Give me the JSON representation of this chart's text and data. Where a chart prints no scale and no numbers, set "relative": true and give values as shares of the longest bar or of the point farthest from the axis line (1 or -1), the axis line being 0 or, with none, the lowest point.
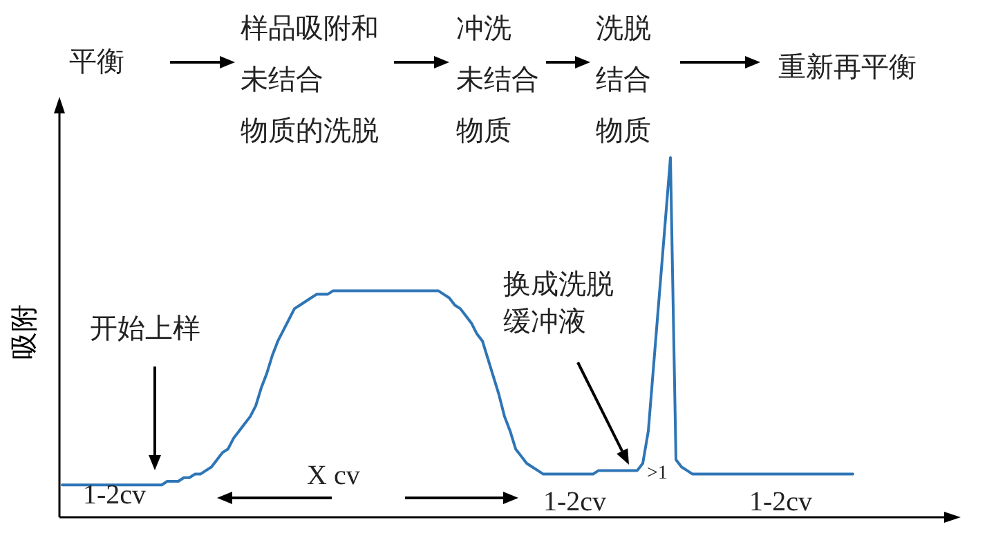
{
  "chart_data": {
    "type": "line",
    "relative": true,
    "ylabel": "吸附",
    "color": "#2e75b6",
    "categories": [
      null,
      null,
      null,
      null,
      null,
      null,
      null,
      null,
      null,
      null,
      null,
      null,
      null,
      null,
      null,
      null,
      null,
      null,
      null,
      null,
      null,
      null,
      null,
      null,
      null,
      null,
      null,
      null,
      null,
      null,
      null,
      null,
      null,
      null,
      null,
      null,
      null,
      null,
      null,
      null,
      null,
      null,
      null,
      null,
      null,
      null,
      null,
      null,
      null,
      null,
      null,
      null,
      null,
      null,
      null,
      null,
      null,
      null,
      null,
      null,
      null,
      null,
      null,
      null,
      null,
      null,
      null,
      null,
      null,
      null,
      null,
      null,
      null,
      null,
      null,
      null,
      null,
      null,
      null,
      null,
      null,
      null,
      null,
      null,
      null,
      null,
      null,
      null,
      null,
      null,
      null,
      null,
      null,
      null,
      null,
      null,
      null,
      null,
      null,
      null,
      null,
      null,
      null,
      null,
      null,
      null,
      null,
      null,
      null,
      null,
      null,
      null,
      null,
      null,
      null,
      null,
      null,
      null,
      null,
      null,
      null,
      null,
      null,
      null,
      null,
      null,
      null,
      null,
      null,
      null,
      null,
      null,
      null,
      null,
      null,
      null,
      null,
      null,
      null,
      null,
      null,
      null,
      null,
      null
    ],
    "values": [
      0.09,
      0.09,
      0.09,
      0.09,
      0.09,
      0.09,
      0.09,
      0.09,
      0.09,
      0.09,
      0.09,
      0.09,
      0.09,
      0.09,
      0.09,
      0.09,
      0.09,
      0.09,
      0.09,
      0.1,
      0.1,
      0.1,
      0.11,
      0.11,
      0.12,
      0.12,
      0.13,
      0.14,
      0.16,
      0.18,
      0.19,
      0.22,
      0.24,
      0.26,
      0.28,
      0.31,
      0.36,
      0.4,
      0.45,
      0.49,
      0.52,
      0.55,
      0.58,
      0.59,
      0.6,
      0.61,
      0.62,
      0.62,
      0.62,
      0.63,
      0.63,
      0.63,
      0.63,
      0.63,
      0.63,
      0.63,
      0.63,
      0.63,
      0.63,
      0.63,
      0.63,
      0.63,
      0.63,
      0.63,
      0.63,
      0.63,
      0.63,
      0.63,
      0.63,
      0.62,
      0.61,
      0.59,
      0.58,
      0.56,
      0.54,
      0.51,
      0.49,
      0.44,
      0.39,
      0.34,
      0.28,
      0.24,
      0.19,
      0.17,
      0.15,
      0.14,
      0.13,
      0.12,
      0.12,
      0.12,
      0.12,
      0.12,
      0.12,
      0.12,
      0.12,
      0.12,
      0.12,
      0.13,
      0.13,
      0.13,
      0.13,
      0.13,
      0.13,
      0.13,
      0.13,
      0.15,
      0.24,
      0.43,
      0.62,
      0.81,
      1,
      0.16,
      0.14,
      0.13,
      0.12,
      0.12,
      0.12,
      0.12,
      0.12,
      0.12,
      0.12,
      0.12,
      0.12,
      0.12,
      0.12,
      0.12,
      0.12,
      0.12,
      0.12,
      0.12,
      0.12,
      0.12,
      0.12,
      0.12,
      0.12,
      0.12,
      0.12,
      0.12,
      0.12,
      0.12,
      0.12,
      0.12,
      0.12,
      0.12
    ],
    "annotations": [
      "平衡",
      "样品吸附和未结合物质的洗脱",
      "冲洗未结合物质",
      "洗脱结合物质",
      "重新再平衡",
      "开始上样",
      "换成洗脱缓冲液",
      "1-2cv",
      "X cv",
      "1-2cv",
      "1-2cv",
      ">1"
    ]
  }
}
